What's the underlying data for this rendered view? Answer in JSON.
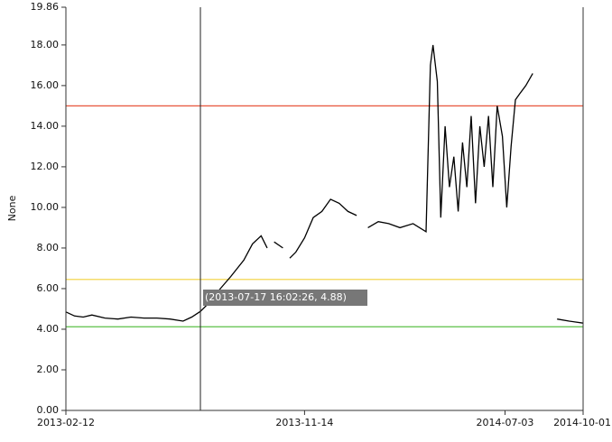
{
  "chart_data": {
    "type": "line",
    "ylabel": "None",
    "x": [
      "2013-02-12",
      "2013-02-22",
      "2013-03-04",
      "2013-03-14",
      "2013-03-29",
      "2013-04-13",
      "2013-04-28",
      "2013-05-13",
      "2013-05-28",
      "2013-06-12",
      "2013-06-27",
      "2013-07-07",
      "2013-07-17",
      "2013-07-27",
      "2013-08-09",
      "2013-08-21",
      "2013-09-05",
      "2013-09-15",
      "2013-09-25",
      "2013-10-02",
      "2013-10-06",
      "2013-10-10",
      "2013-10-20",
      "2013-10-24",
      "2013-10-28",
      "2013-11-04",
      "2013-11-14",
      "2013-11-24",
      "2013-12-04",
      "2013-12-14",
      "2013-12-24",
      "2014-01-03",
      "2014-01-13",
      "2014-01-20",
      "2014-01-26",
      "2014-02-07",
      "2014-02-19",
      "2014-03-04",
      "2014-03-19",
      "2014-04-03",
      "2014-04-08",
      "2014-04-11",
      "2014-04-16",
      "2014-04-20",
      "2014-04-25",
      "2014-04-30",
      "2014-05-05",
      "2014-05-10",
      "2014-05-15",
      "2014-05-20",
      "2014-05-25",
      "2014-05-30",
      "2014-06-04",
      "2014-06-09",
      "2014-06-14",
      "2014-06-19",
      "2014-06-24",
      "2014-06-30",
      "2014-07-05",
      "2014-07-10",
      "2014-07-15",
      "2014-07-20",
      "2014-07-27",
      "2014-08-04",
      "2014-08-20",
      "2014-09-01",
      "2014-09-15",
      "2014-10-01"
    ],
    "series": [
      {
        "color": "#000000",
        "values": [
          4.85,
          4.65,
          4.6,
          4.7,
          4.55,
          4.5,
          4.6,
          4.55,
          4.55,
          4.5,
          4.4,
          4.6,
          4.88,
          5.3,
          6.0,
          6.6,
          7.4,
          8.2,
          8.6,
          8.0,
          null,
          8.3,
          8.0,
          null,
          7.5,
          7.8,
          8.5,
          9.5,
          9.8,
          10.4,
          10.2,
          9.8,
          9.6,
          null,
          9.0,
          9.3,
          9.2,
          9.0,
          9.2,
          8.8,
          17.0,
          18.0,
          16.2,
          9.5,
          14.0,
          11.0,
          12.5,
          9.8,
          13.2,
          11.0,
          14.5,
          10.2,
          14.0,
          12.0,
          14.5,
          11.0,
          15.0,
          13.5,
          10.0,
          13.0,
          15.3,
          15.6,
          16.0,
          16.6,
          null,
          4.5,
          4.4,
          4.3
        ]
      }
    ],
    "xlim": [
      "2013-02-12",
      "2014-10-01"
    ],
    "xticks": [
      "2013-02-12",
      "2013-11-14",
      "2014-07-03",
      "2014-10-01"
    ],
    "ylim": [
      0,
      19.86
    ],
    "yticks": [
      {
        "value": 0,
        "label": "0.00"
      },
      {
        "value": 2,
        "label": "2.00"
      },
      {
        "value": 4,
        "label": "4.00"
      },
      {
        "value": 6,
        "label": "6.00"
      },
      {
        "value": 8,
        "label": "8.00"
      },
      {
        "value": 10,
        "label": "10.00"
      },
      {
        "value": 12,
        "label": "12.00"
      },
      {
        "value": 14,
        "label": "14.00"
      },
      {
        "value": 16,
        "label": "16.00"
      },
      {
        "value": 18,
        "label": "18.00"
      },
      19.86
    ],
    "reference_lines": [
      {
        "value": 15,
        "color": "#e8553a"
      },
      {
        "value": 6.45,
        "color": "#f2d13a"
      },
      {
        "value": 4.12,
        "color": "#5cc146"
      }
    ],
    "cursor": {
      "x": "2013-07-17",
      "label": "(2013-07-17 16:02:26, 4.88)"
    }
  }
}
